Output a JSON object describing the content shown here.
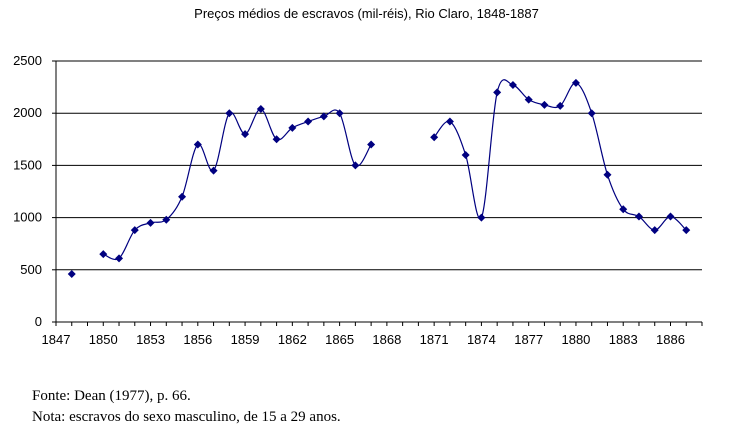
{
  "chart_data": {
    "type": "line",
    "title": "Preços médios de escravos (mil-réis), Rio Claro, 1848-1887",
    "xlabel": "",
    "ylabel": "",
    "x_ticks": [
      "1847",
      "1850",
      "1853",
      "1856",
      "1859",
      "1862",
      "1865",
      "1868",
      "1871",
      "1874",
      "1877",
      "1880",
      "1883",
      "1886"
    ],
    "y_ticks": [
      "0",
      "500",
      "1000",
      "1500",
      "2000",
      "2500"
    ],
    "xlim": [
      1847,
      1888
    ],
    "ylim": [
      0,
      2500
    ],
    "grid": "horizontal",
    "line_color": "#000080",
    "marker": "diamond",
    "series": [
      {
        "segments": [
          [
            [
              1848,
              460
            ]
          ],
          [
            [
              1850,
              650
            ],
            [
              1851,
              610
            ],
            [
              1852,
              880
            ],
            [
              1853,
              950
            ],
            [
              1854,
              980
            ],
            [
              1855,
              1200
            ],
            [
              1856,
              1700
            ],
            [
              1857,
              1450
            ],
            [
              1858,
              2000
            ],
            [
              1859,
              1800
            ],
            [
              1860,
              2040
            ],
            [
              1861,
              1750
            ],
            [
              1862,
              1860
            ],
            [
              1863,
              1920
            ],
            [
              1864,
              1970
            ],
            [
              1865,
              2000
            ],
            [
              1866,
              1500
            ],
            [
              1867,
              1700
            ]
          ],
          [
            [
              1871,
              1770
            ],
            [
              1872,
              1920
            ],
            [
              1873,
              1600
            ],
            [
              1874,
              1000
            ],
            [
              1875,
              2200
            ],
            [
              1876,
              2270
            ],
            [
              1877,
              2130
            ],
            [
              1878,
              2080
            ],
            [
              1879,
              2070
            ],
            [
              1880,
              2290
            ],
            [
              1881,
              2000
            ],
            [
              1882,
              1410
            ],
            [
              1883,
              1080
            ],
            [
              1884,
              1010
            ],
            [
              1885,
              880
            ],
            [
              1886,
              1010
            ],
            [
              1887,
              880
            ]
          ]
        ]
      }
    ]
  },
  "notes": {
    "source": "Fonte: Dean (1977), p. 66.",
    "footnote": "Nota: escravos do sexo masculino, de 15 a 29 anos."
  }
}
